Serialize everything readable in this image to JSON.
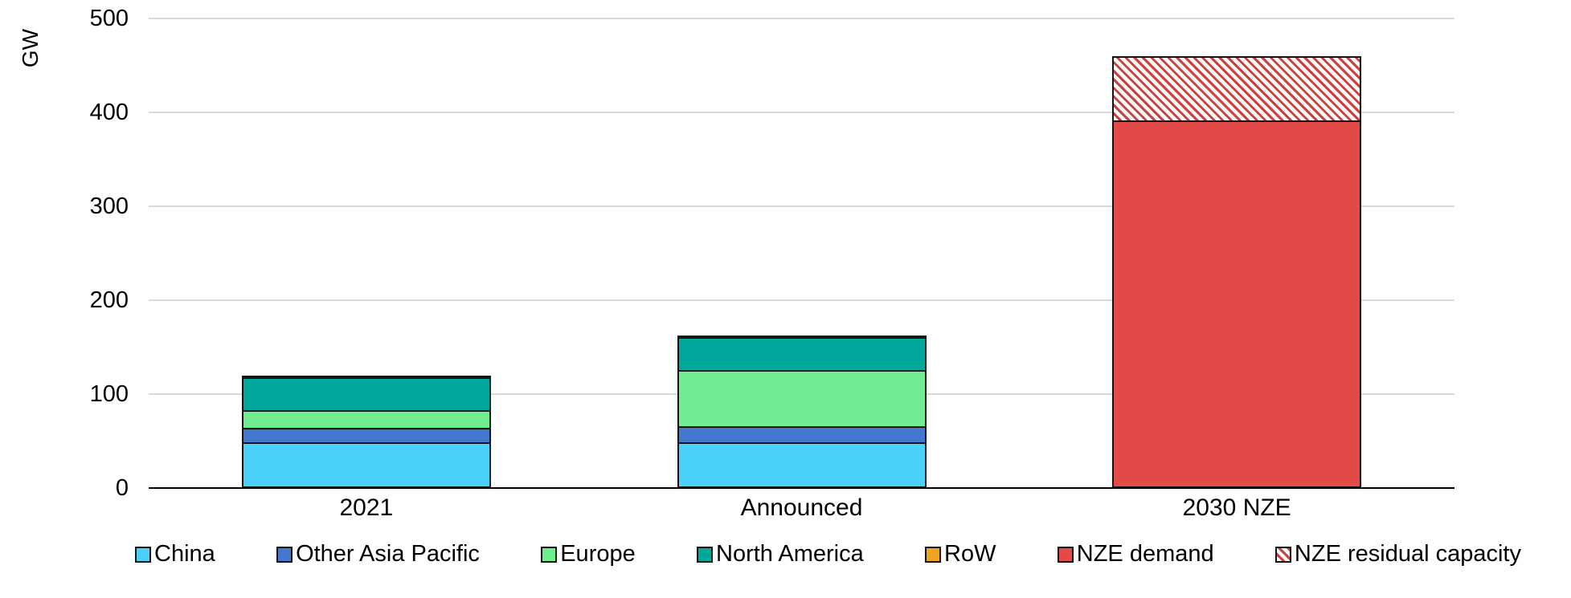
{
  "chart_data": {
    "type": "bar",
    "stacked": true,
    "title": "",
    "ylabel": "GW",
    "xlabel": "",
    "ylim": [
      0,
      500
    ],
    "yticks": [
      0,
      100,
      200,
      300,
      400,
      500
    ],
    "grid": true,
    "legend_position": "bottom",
    "categories": [
      "2021",
      "Announced",
      "2030 NZE"
    ],
    "series": [
      {
        "name": "China",
        "color": "#49d1fa",
        "pattern": "solid",
        "values": [
          47,
          47,
          0
        ]
      },
      {
        "name": "Other Asia Pacific",
        "color": "#4377d0",
        "pattern": "solid",
        "values": [
          15,
          17,
          0
        ]
      },
      {
        "name": "Europe",
        "color": "#6fed90",
        "pattern": "solid",
        "values": [
          19,
          60,
          0
        ]
      },
      {
        "name": "North America",
        "color": "#00a89b",
        "pattern": "solid",
        "values": [
          35,
          35,
          0
        ]
      },
      {
        "name": "RoW",
        "color": "#efa51d",
        "pattern": "solid",
        "values": [
          4,
          2,
          0
        ]
      },
      {
        "name": "NZE demand",
        "color": "#e24b47",
        "pattern": "solid",
        "values": [
          0,
          0,
          390
        ]
      },
      {
        "name": "NZE residual capacity",
        "color": "#ce403c",
        "pattern": "diagonal-hatch",
        "values": [
          0,
          0,
          70
        ]
      }
    ],
    "totals": {
      "2021": 120,
      "Announced": 161,
      "2030 NZE": 460
    },
    "colors": {
      "gridline": "#dadada",
      "axis": "#000000",
      "segment_border": "#141414",
      "hatch_background": "#ffffff"
    }
  }
}
